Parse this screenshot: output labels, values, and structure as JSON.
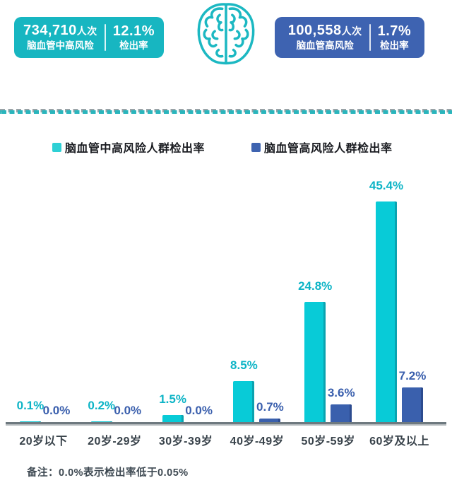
{
  "stat_left": {
    "count": "734,710",
    "count_suffix": "人次",
    "label": "脑血管中高风险",
    "rate": "12.1%",
    "rate_label": "检出率",
    "color": "#17b6c1"
  },
  "stat_right": {
    "count": "100,558",
    "count_suffix": "人次",
    "label": "脑血管高风险",
    "rate": "1.7%",
    "rate_label": "检出率",
    "color": "#3e63b1"
  },
  "icon": "brain-icon",
  "legend": [
    {
      "label": "脑血管中高风险人群检出率",
      "color": "#2ed0d5"
    },
    {
      "label": "脑血管高风险人群检出率",
      "color": "#3e63b0"
    }
  ],
  "chart_data": {
    "type": "bar",
    "categories": [
      "20岁以下",
      "20岁-29岁",
      "30岁-39岁",
      "40岁-49岁",
      "50岁-59岁",
      "60岁及以上"
    ],
    "series": [
      {
        "name": "脑血管中高风险人群检出率",
        "color": "#08cbd7",
        "label_color": "#0db4c6",
        "values": [
          0.1,
          0.2,
          1.5,
          8.5,
          24.8,
          45.4
        ],
        "labels": [
          "0.1%",
          "0.2%",
          "1.5%",
          "8.5%",
          "24.8%",
          "45.4%"
        ]
      },
      {
        "name": "脑血管高风险人群检出率",
        "color": "#3a60ad",
        "label_color": "#3a5fad",
        "values": [
          0.0,
          0.0,
          0.0,
          0.7,
          3.6,
          7.2
        ],
        "labels": [
          "0.0%",
          "0.0%",
          "0.0%",
          "0.7%",
          "3.6%",
          "7.2%"
        ]
      }
    ],
    "ylim": [
      0,
      50
    ],
    "unit": "%",
    "grid": false,
    "legend_position": "top"
  },
  "note": "备注：0.0%表示检出率低于0.05%"
}
